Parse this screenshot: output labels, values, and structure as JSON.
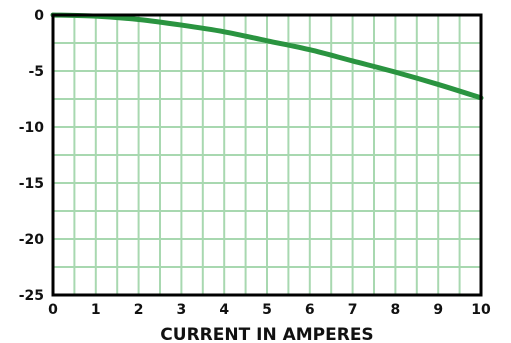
{
  "chart_data": {
    "type": "line",
    "title": "",
    "xlabel": "CURRENT IN AMPERES",
    "ylabel": "",
    "xlim": [
      0,
      10
    ],
    "ylim": [
      -25,
      0
    ],
    "x_ticks": [
      "0",
      "1",
      "2",
      "3",
      "4",
      "5",
      "6",
      "7",
      "8",
      "9",
      "10"
    ],
    "y_ticks": [
      "0",
      "-5",
      "-10",
      "-15",
      "-20",
      "-25"
    ],
    "grid": true,
    "legend": "none",
    "series": [
      {
        "x": [
          0,
          1,
          2,
          3,
          4,
          5,
          6,
          7,
          8,
          9,
          10
        ],
        "y": [
          0,
          -0.1,
          -0.4,
          -0.9,
          -1.5,
          -2.3,
          -3.1,
          -4.1,
          -5.1,
          -6.2,
          -7.4
        ]
      }
    ],
    "colors": {
      "line": "#2a9440",
      "grid": "#a8d8b0",
      "frame": "#000000"
    }
  }
}
